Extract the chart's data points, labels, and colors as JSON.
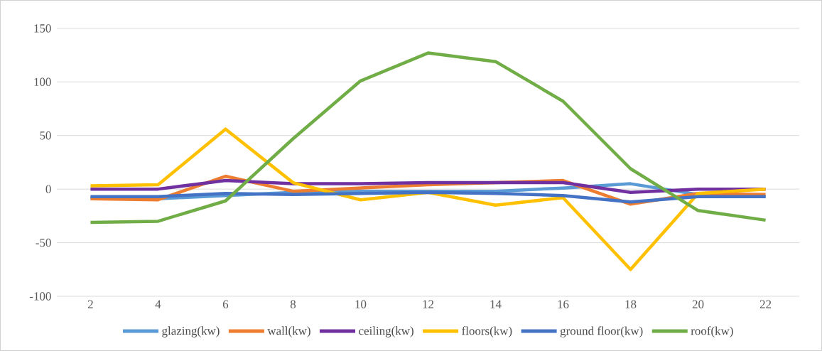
{
  "chart_data": {
    "type": "line",
    "categories": [
      "2",
      "4",
      "6",
      "8",
      "10",
      "12",
      "14",
      "16",
      "18",
      "20",
      "22"
    ],
    "series": [
      {
        "name": "glazing(kw)",
        "color": "#5b9bd5",
        "values": [
          -8,
          -9,
          -6,
          -3,
          -2,
          -2,
          -2,
          1,
          5,
          -5,
          -7
        ]
      },
      {
        "name": "wall(kw)",
        "color": "#ed7d31",
        "values": [
          -9,
          -10,
          12,
          -2,
          1,
          4,
          6,
          8,
          -14,
          -4,
          -5
        ]
      },
      {
        "name": "ceiling(kw)",
        "color": "#7030a0",
        "values": [
          0,
          0,
          8,
          5,
          5,
          6,
          6,
          6,
          -3,
          0,
          0
        ]
      },
      {
        "name": "floors(kw)",
        "color": "#ffc000",
        "values": [
          3,
          4,
          56,
          6,
          -10,
          -3,
          -15,
          -8,
          -75,
          -4,
          0
        ]
      },
      {
        "name": "ground floor(kw)",
        "color": "#4472c4",
        "values": [
          -7,
          -7,
          -4,
          -5,
          -4,
          -3,
          -4,
          -6,
          -12,
          -7,
          -7
        ]
      },
      {
        "name": "roof(kw)",
        "color": "#70ad47",
        "values": [
          -31,
          -30,
          -11,
          47,
          101,
          127,
          119,
          82,
          19,
          -20,
          -29
        ]
      }
    ],
    "ylim": [
      -100,
      150
    ],
    "yticks": [
      -100,
      -50,
      0,
      50,
      100,
      150
    ],
    "grid": "y",
    "legend": "bottom",
    "marker": "none",
    "line_style": "solid"
  }
}
